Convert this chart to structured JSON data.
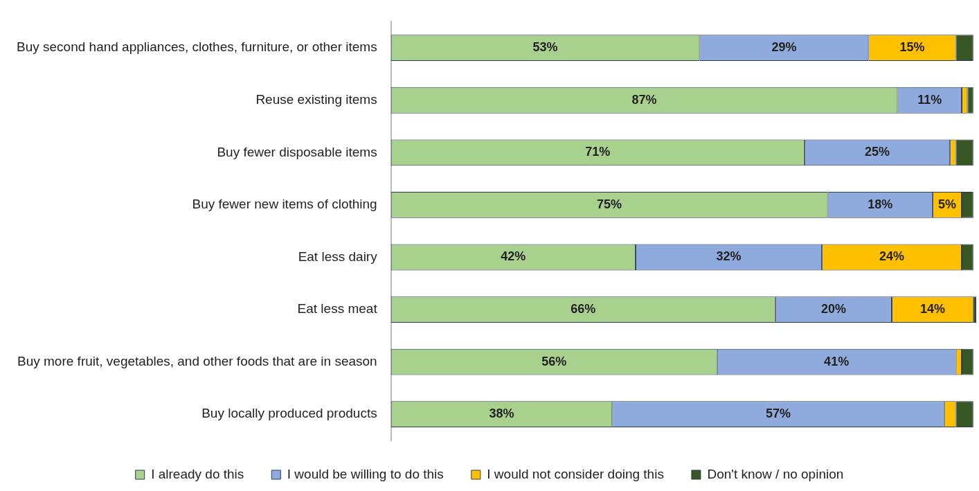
{
  "chart_data": {
    "type": "bar",
    "orientation": "horizontal",
    "stacked": true,
    "categories": [
      "Buy second hand appliances, clothes, furniture, or other items",
      "Reuse existing items",
      "Buy fewer disposable items",
      "Buy fewer new items of clothing",
      "Eat less dairy",
      "Eat less meat",
      "Buy more fruit, vegetables, and other foods that are in season",
      "Buy locally produced products"
    ],
    "series": [
      {
        "name": "I already do this",
        "color": "#a9d18e",
        "values": [
          53,
          87,
          71,
          75,
          42,
          66,
          56,
          38
        ],
        "value_labels": [
          "53%",
          "87%",
          "71%",
          "75%",
          "42%",
          "66%",
          "56%",
          "38%"
        ]
      },
      {
        "name": "I would be willing to do this",
        "color": "#8faadc",
        "values": [
          29,
          11,
          25,
          18,
          32,
          20,
          41,
          57
        ],
        "value_labels": [
          "29%",
          "11%",
          "25%",
          "18%",
          "32%",
          "20%",
          "41%",
          "57%"
        ]
      },
      {
        "name": "I would not consider doing this",
        "color": "#ffc000",
        "values": [
          15,
          1,
          1,
          5,
          24,
          14,
          1,
          2
        ],
        "value_labels": [
          "15%",
          null,
          null,
          "5%",
          "24%",
          "14%",
          null,
          null
        ]
      },
      {
        "name": "Don't know / no opinion",
        "color": "#375623",
        "values": [
          3,
          1,
          3,
          2,
          2,
          0.5,
          2,
          3
        ],
        "value_labels": [
          null,
          null,
          null,
          null,
          null,
          null,
          null,
          null
        ]
      }
    ],
    "xlim": [
      0,
      100.5
    ],
    "tick_labels": "y",
    "grid": false,
    "legend": "bottom"
  }
}
